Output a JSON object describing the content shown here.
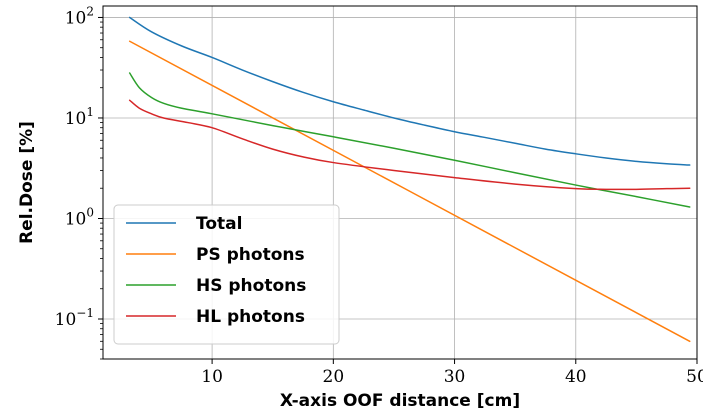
{
  "chart_data": {
    "type": "line",
    "title": "",
    "xlabel": "X-axis OOF distance [cm]",
    "ylabel": "Rel.Dose [%]",
    "xlim": [
      1,
      50
    ],
    "ylim": [
      0.04,
      130
    ],
    "yscale": "log",
    "grid": true,
    "legend_position": "lower-left",
    "x_ticks": [
      10,
      20,
      30,
      40,
      50
    ],
    "y_ticks": [
      {
        "value": 0.1,
        "base": "10",
        "exp": "−1"
      },
      {
        "value": 1,
        "base": "10",
        "exp": "0"
      },
      {
        "value": 10,
        "base": "10",
        "exp": "1"
      },
      {
        "value": 100,
        "base": "10",
        "exp": "2"
      }
    ],
    "series": [
      {
        "name": "Total",
        "color": "#1f77b4",
        "x": [
          3.2,
          5,
          7.5,
          10,
          12.5,
          15,
          17.5,
          20,
          22.5,
          25,
          27.5,
          30,
          32.5,
          35,
          37.5,
          40,
          42.5,
          45,
          47.5,
          49.4
        ],
        "y": [
          100,
          72,
          52,
          40,
          30,
          23,
          18,
          14.5,
          12,
          10,
          8.5,
          7.3,
          6.4,
          5.6,
          4.9,
          4.4,
          4.0,
          3.7,
          3.5,
          3.4
        ]
      },
      {
        "name": "PS photons",
        "color": "#ff7f0e",
        "x": [
          3.2,
          49.4
        ],
        "y": [
          58,
          0.06
        ]
      },
      {
        "name": "HS photons",
        "color": "#2ca02c",
        "x": [
          3.2,
          4,
          5,
          6,
          7.5,
          10,
          15,
          20,
          25,
          30,
          35,
          40,
          45,
          49.4
        ],
        "y": [
          28,
          20,
          16,
          14,
          12.5,
          11,
          8.4,
          6.5,
          5.0,
          3.8,
          2.85,
          2.15,
          1.65,
          1.3
        ]
      },
      {
        "name": "HL photons",
        "color": "#d62728",
        "x": [
          3.2,
          4,
          5,
          6,
          8,
          10,
          12.5,
          15,
          17.5,
          20,
          25,
          30,
          35,
          40,
          42.5,
          45,
          47.5,
          49.4
        ],
        "y": [
          15,
          12.5,
          11,
          10,
          9,
          8,
          6.2,
          4.9,
          4.1,
          3.6,
          3.0,
          2.55,
          2.2,
          1.98,
          1.95,
          1.95,
          1.98,
          2.0
        ]
      }
    ]
  }
}
